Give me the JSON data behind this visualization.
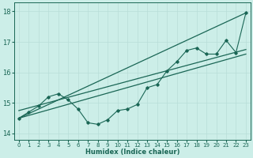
{
  "xlabel": "Humidex (Indice chaleur)",
  "ylabel": "",
  "background_color": "#cceee8",
  "grid_color": "#b8ddd8",
  "line_color": "#1a6655",
  "xlim": [
    -0.5,
    23.5
  ],
  "ylim": [
    13.8,
    18.3
  ],
  "xticks": [
    0,
    1,
    2,
    3,
    4,
    5,
    6,
    7,
    8,
    9,
    10,
    11,
    12,
    13,
    14,
    15,
    16,
    17,
    18,
    19,
    20,
    21,
    22,
    23
  ],
  "yticks": [
    14,
    15,
    16,
    17,
    18
  ],
  "x_data": [
    0,
    1,
    2,
    3,
    4,
    5,
    6,
    7,
    8,
    9,
    10,
    11,
    12,
    13,
    14,
    15,
    16,
    17,
    18,
    19,
    20,
    21,
    22,
    23
  ],
  "y_data": [
    14.5,
    14.7,
    14.9,
    15.2,
    15.3,
    15.1,
    14.8,
    14.35,
    14.3,
    14.45,
    14.75,
    14.8,
    14.95,
    15.5,
    15.6,
    16.05,
    16.35,
    16.72,
    16.8,
    16.6,
    16.6,
    17.05,
    16.65,
    17.95
  ],
  "trend1_x": [
    0,
    23
  ],
  "trend1_y": [
    14.5,
    17.95
  ],
  "trend2_x": [
    0,
    23
  ],
  "trend2_y": [
    14.5,
    16.6
  ],
  "trend3_x": [
    0,
    23
  ],
  "trend3_y": [
    14.75,
    16.75
  ]
}
